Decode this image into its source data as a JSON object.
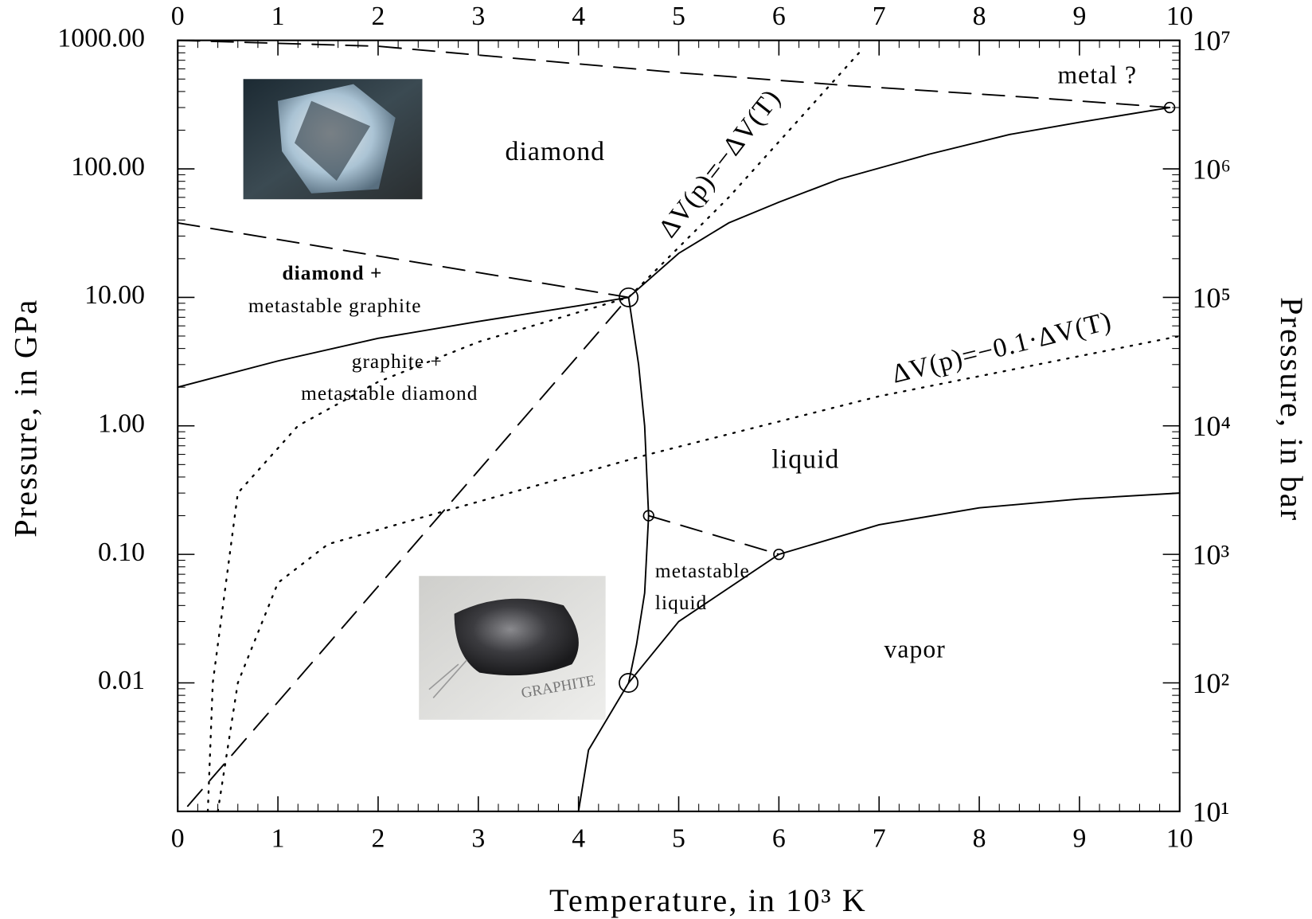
{
  "chart_data": {
    "type": "line",
    "xlabel": "Temperature, in 10³ K",
    "ylabel": "Pressure, in GPa",
    "y2label": "Pressure, in bar",
    "xlim": [
      0,
      10
    ],
    "xticks": [
      0,
      1,
      2,
      3,
      4,
      5,
      6,
      7,
      8,
      9,
      10
    ],
    "ylim": [
      0.001,
      1000
    ],
    "yscale": "log",
    "yticks": [
      {
        "value": 1000,
        "label": "1000.00"
      },
      {
        "value": 100,
        "label": "100.00"
      },
      {
        "value": 10,
        "label": "10.00"
      },
      {
        "value": 1,
        "label": "1.00"
      },
      {
        "value": 0.1,
        "label": "0.10"
      },
      {
        "value": 0.01,
        "label": "0.01"
      }
    ],
    "y2lim": [
      10,
      10000000
    ],
    "y2scale": "log",
    "y2ticks": [
      {
        "value": 10,
        "label": "10¹"
      },
      {
        "value": 100,
        "label": "10²"
      },
      {
        "value": 1000,
        "label": "10³"
      },
      {
        "value": 10000,
        "label": "10⁴"
      },
      {
        "value": 100000,
        "label": "10⁵"
      },
      {
        "value": 1000000,
        "label": "10⁶"
      },
      {
        "value": 10000000,
        "label": "10⁷"
      }
    ],
    "series": [
      {
        "color": "#000000",
        "style": "solid",
        "x": [
          0,
          1,
          2,
          3,
          4,
          4.5
        ],
        "values": [
          2,
          3.2,
          4.8,
          6.5,
          8.6,
          10
        ]
      },
      {
        "color": "#000000",
        "style": "solid",
        "x": [
          4.5,
          5,
          5.5,
          6,
          6.6,
          7.5,
          8.3,
          9,
          9.9
        ],
        "values": [
          10,
          22,
          38,
          55,
          83,
          130,
          185,
          230,
          300
        ]
      },
      {
        "color": "#000000",
        "style": "solid",
        "x": [
          4.5,
          4.6,
          4.66,
          4.7,
          4.66,
          4.58,
          4.5
        ],
        "values": [
          10,
          3,
          1,
          0.2,
          0.05,
          0.02,
          0.01
        ]
      },
      {
        "color": "#000000",
        "style": "solid",
        "x": [
          4.0,
          4.1,
          4.5,
          5,
          6,
          7,
          8,
          9,
          10
        ],
        "values": [
          0.001,
          0.003,
          0.01,
          0.03,
          0.1,
          0.17,
          0.23,
          0.27,
          0.3
        ]
      },
      {
        "color": "#000000",
        "style": "dashed",
        "x": [
          0,
          4.5
        ],
        "values": [
          38,
          10
        ]
      },
      {
        "color": "#000000",
        "style": "dashed",
        "x": [
          0.1,
          4.5
        ],
        "values": [
          0.0011,
          10
        ]
      },
      {
        "color": "#000000",
        "style": "dashed",
        "x": [
          0,
          2,
          5,
          6.6,
          8.5,
          9.9
        ],
        "values": [
          1000,
          900,
          560,
          450,
          360,
          300
        ]
      },
      {
        "color": "#000000",
        "style": "dashed",
        "x": [
          4.7,
          6
        ],
        "values": [
          0.2,
          0.1
        ]
      },
      {
        "color": "#000000",
        "style": "dotted",
        "x": [
          0.3,
          0.35,
          0.6,
          1.2,
          2,
          3,
          4.5,
          5.5,
          6.8
        ],
        "values": [
          0.001,
          0.01,
          0.3,
          1,
          2.2,
          4.5,
          10,
          60,
          800
        ]
      },
      {
        "color": "#000000",
        "style": "dotted",
        "x": [
          0.4,
          0.6,
          1,
          1.5,
          2.5,
          4.7,
          7,
          10
        ],
        "values": [
          0.001,
          0.01,
          0.06,
          0.12,
          0.2,
          0.6,
          1.7,
          5
        ]
      }
    ],
    "markers": [
      {
        "shape": "circle",
        "size": "large",
        "x": [
          4.5,
          4.5
        ],
        "values": [
          10,
          0.01
        ]
      },
      {
        "shape": "circle",
        "size": "small",
        "x": [
          4.7,
          6,
          9.9
        ],
        "values": [
          0.2,
          0.1,
          300
        ]
      }
    ],
    "annotations": [
      "metal ?",
      "diamond",
      "diamond +",
      "metastable graphite",
      "graphite +",
      "metastable diamond",
      "liquid",
      "metastable",
      "liquid",
      "vapor",
      "ΔV(p)=−ΔV(T)",
      "ΔV(p)=−0.1·ΔV(T)"
    ]
  }
}
